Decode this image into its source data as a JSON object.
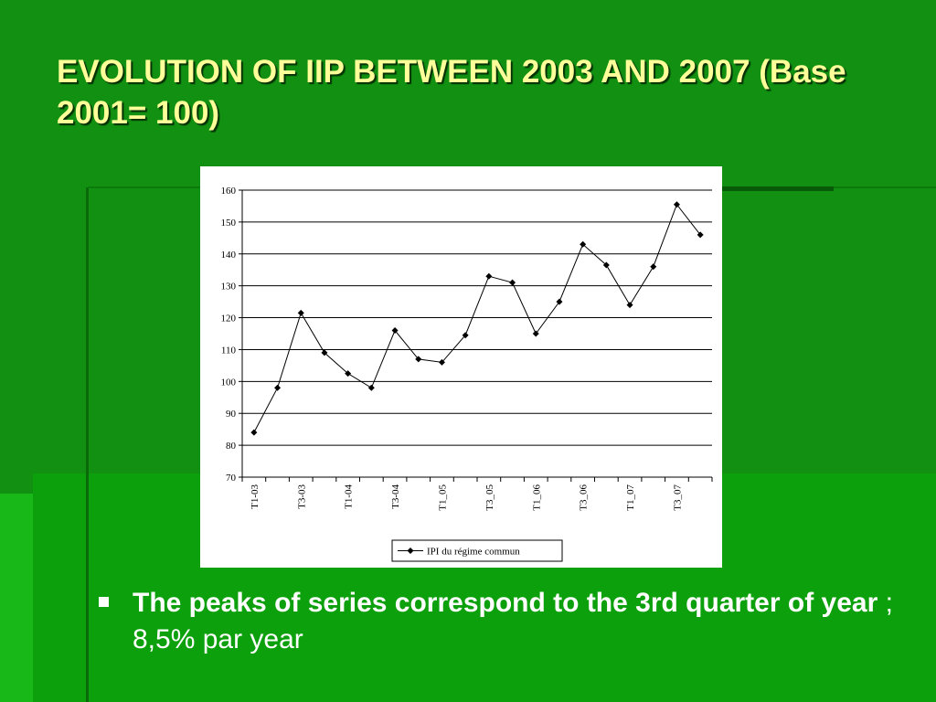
{
  "chart_data": {
    "type": "line",
    "title": "EVOLUTION OF IIP BETWEEN 2003 AND 2007 (Base 2001= 100)",
    "annotations": [
      "The peaks of series correspond to the 3rd quarter of year",
      " ; 8,5% par year"
    ],
    "categories": [
      "T1-03",
      null,
      "T3-03",
      null,
      "T1-04",
      null,
      "T3-04",
      null,
      "T1_05",
      null,
      "T3_05",
      null,
      "T1_06",
      null,
      "T3_06",
      null,
      "T1_07",
      null,
      "T3_07",
      null
    ],
    "series": [
      {
        "name": "IPI du régime commun",
        "color": "#000000",
        "values": [
          84,
          98,
          121.5,
          109,
          102.5,
          98,
          116,
          107,
          106,
          114.5,
          133,
          131,
          115,
          125,
          143,
          136.5,
          124,
          136,
          155.5,
          146
        ]
      }
    ],
    "ylim": [
      70,
      160
    ],
    "yticks": [
      70,
      80,
      90,
      100,
      110,
      120,
      130,
      140,
      150,
      160
    ],
    "grid": true,
    "legend": "bottom"
  }
}
